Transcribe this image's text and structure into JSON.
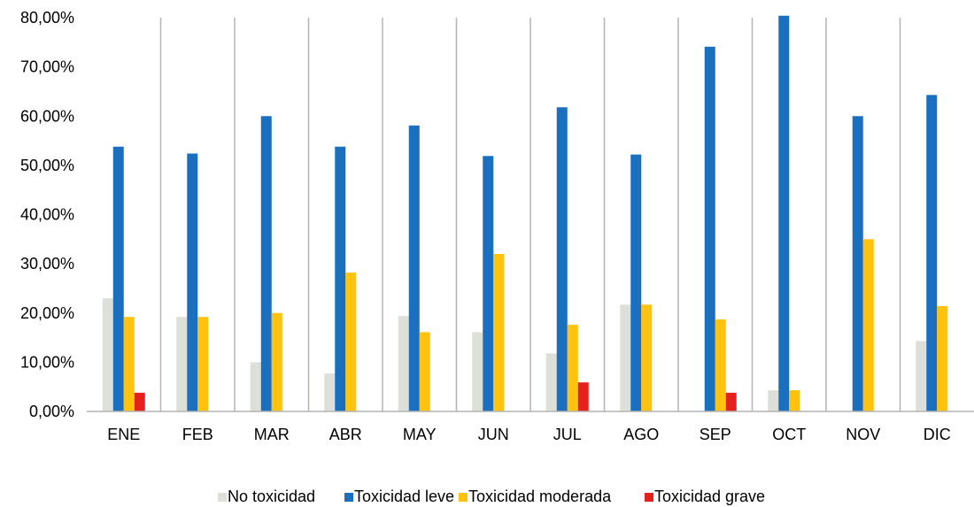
{
  "chart_data": {
    "type": "bar",
    "categories": [
      "ENE",
      "FEB",
      "MAR",
      "ABR",
      "MAY",
      "JUN",
      "JUL",
      "AGO",
      "SEP",
      "OCT",
      "NOV",
      "DIC"
    ],
    "series": [
      {
        "name": "No toxicidad",
        "color": "#DDE0D8",
        "values": [
          23.0,
          19.2,
          10.0,
          7.7,
          19.4,
          16.1,
          11.8,
          21.7,
          0,
          4.3,
          0,
          14.3
        ]
      },
      {
        "name": "Toxicidad leve",
        "color": "#1A6FBF",
        "values": [
          53.8,
          52.4,
          60.0,
          53.8,
          58.1,
          51.9,
          61.8,
          52.2,
          74.1,
          80.4,
          60.0,
          64.3
        ]
      },
      {
        "name": "Toxicidad moderada",
        "color": "#FFC20E",
        "values": [
          19.2,
          19.2,
          20.0,
          28.2,
          16.1,
          32.0,
          17.6,
          21.7,
          18.7,
          4.3,
          35.0,
          21.4
        ]
      },
      {
        "name": "Toxicidad grave",
        "color": "#E5211D",
        "values": [
          3.8,
          0,
          0,
          0,
          0,
          0,
          5.9,
          0,
          3.8,
          0,
          0,
          0
        ]
      }
    ],
    "y_ticks": [
      "0,00%",
      "10,00%",
      "20,00%",
      "30,00%",
      "40,00%",
      "50,00%",
      "60,00%",
      "70,00%",
      "80,00%"
    ],
    "ylim": [
      0,
      80
    ],
    "title": "",
    "xlabel": "",
    "ylabel": "",
    "grid": "vertical separators between categories",
    "legend_position": "bottom"
  }
}
